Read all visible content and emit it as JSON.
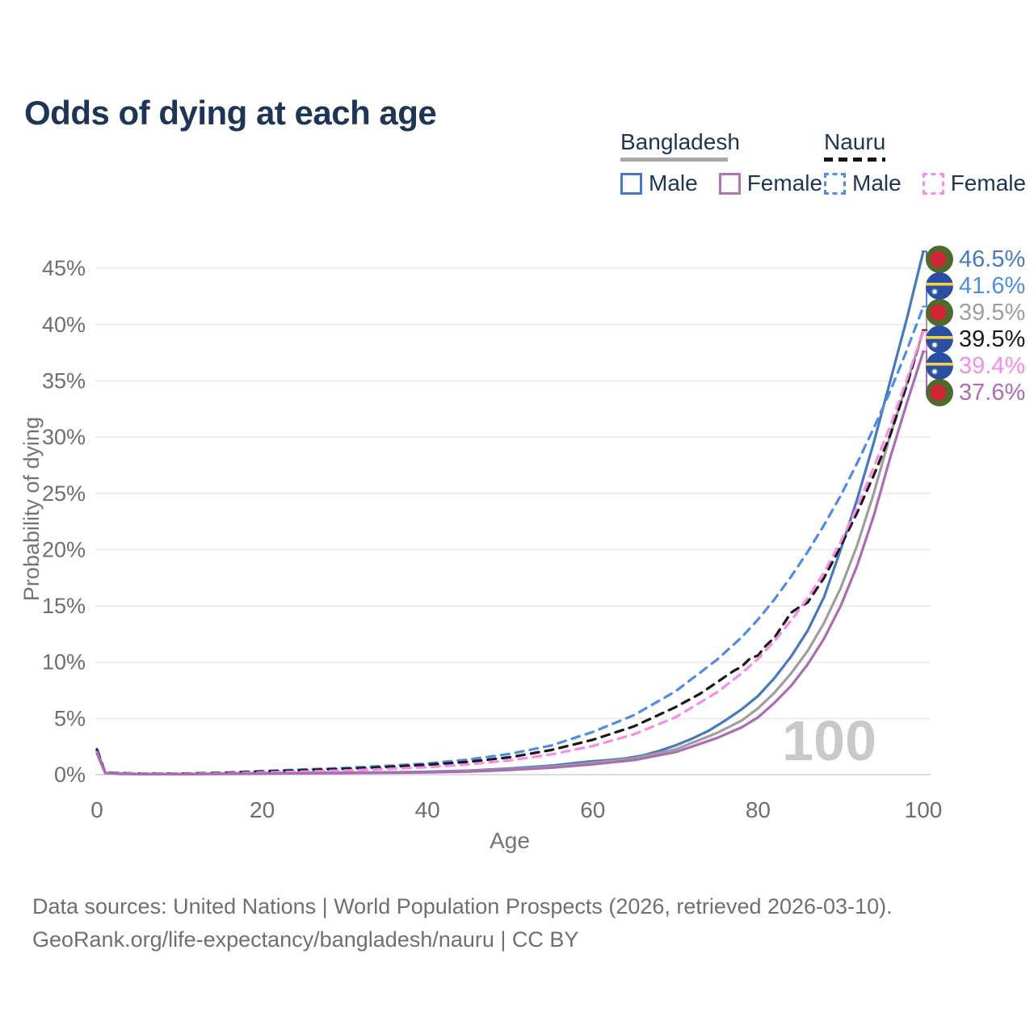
{
  "header": {
    "title": "Odds of dying at each age"
  },
  "legend": {
    "groups": [
      {
        "label": "Bangladesh",
        "line_style": "solid",
        "rule_color": "#a8a8a8",
        "items": [
          {
            "label": "Male",
            "color": "#4679bd",
            "style": "solid"
          },
          {
            "label": "Female",
            "color": "#b273b5",
            "style": "solid"
          }
        ]
      },
      {
        "label": "Nauru",
        "line_style": "dashed",
        "rule_color": "#141414",
        "items": [
          {
            "label": "Male",
            "color": "#4e8ce8",
            "style": "dashed"
          },
          {
            "label": "Female",
            "color": "#f98be6",
            "style": "dashed"
          }
        ]
      }
    ]
  },
  "chart_data": {
    "type": "line",
    "title": "Odds of dying at each age",
    "xlabel": "Age",
    "ylabel": "Probability of dying",
    "xlim": [
      0,
      100
    ],
    "ylim": [
      0,
      47
    ],
    "x_ticks": [
      0,
      20,
      40,
      60,
      80,
      100
    ],
    "y_ticks_pct": [
      0,
      5,
      10,
      15,
      20,
      25,
      30,
      35,
      40,
      45
    ],
    "grid": true,
    "legend_position": "top-right",
    "watermark": "100",
    "series": [
      {
        "id": "bangladesh-male",
        "name": "Bangladesh Male",
        "country": "bangladesh",
        "sex": "male",
        "color": "#4679bd",
        "dash": "solid",
        "end_label": "46.5%",
        "points": [
          [
            0,
            2.2
          ],
          [
            1,
            0.16
          ],
          [
            3,
            0.07
          ],
          [
            5,
            0.06
          ],
          [
            10,
            0.05
          ],
          [
            15,
            0.09
          ],
          [
            18,
            0.13
          ],
          [
            20,
            0.14
          ],
          [
            25,
            0.16
          ],
          [
            30,
            0.18
          ],
          [
            35,
            0.21
          ],
          [
            40,
            0.26
          ],
          [
            45,
            0.36
          ],
          [
            50,
            0.55
          ],
          [
            55,
            0.8
          ],
          [
            58,
            1.05
          ],
          [
            60,
            1.2
          ],
          [
            62,
            1.3
          ],
          [
            64,
            1.45
          ],
          [
            66,
            1.7
          ],
          [
            68,
            2.1
          ],
          [
            70,
            2.6
          ],
          [
            72,
            3.2
          ],
          [
            74,
            3.9
          ],
          [
            76,
            4.8
          ],
          [
            78,
            5.8
          ],
          [
            80,
            7.0
          ],
          [
            82,
            8.6
          ],
          [
            84,
            10.5
          ],
          [
            86,
            12.8
          ],
          [
            88,
            15.8
          ],
          [
            90,
            20.0
          ],
          [
            92,
            24.5
          ],
          [
            94,
            29.5
          ],
          [
            96,
            35.0
          ],
          [
            98,
            40.5
          ],
          [
            100,
            46.5
          ]
        ]
      },
      {
        "id": "nauru-male",
        "name": "Nauru Male",
        "country": "nauru",
        "sex": "male",
        "color": "#4e8ce8",
        "dash": "dashed",
        "end_label": "41.6%",
        "points": [
          [
            0,
            2.3
          ],
          [
            1,
            0.2
          ],
          [
            5,
            0.1
          ],
          [
            10,
            0.1
          ],
          [
            15,
            0.17
          ],
          [
            20,
            0.32
          ],
          [
            25,
            0.46
          ],
          [
            30,
            0.6
          ],
          [
            35,
            0.78
          ],
          [
            40,
            1.0
          ],
          [
            45,
            1.35
          ],
          [
            50,
            1.85
          ],
          [
            55,
            2.6
          ],
          [
            60,
            3.8
          ],
          [
            65,
            5.3
          ],
          [
            70,
            7.4
          ],
          [
            75,
            10.2
          ],
          [
            78,
            12.2
          ],
          [
            80,
            13.8
          ],
          [
            82,
            15.6
          ],
          [
            84,
            17.6
          ],
          [
            86,
            19.8
          ],
          [
            88,
            22.2
          ],
          [
            90,
            24.8
          ],
          [
            92,
            27.7
          ],
          [
            94,
            30.8
          ],
          [
            96,
            34.1
          ],
          [
            98,
            37.7
          ],
          [
            100,
            41.6
          ]
        ]
      },
      {
        "id": "bangladesh-total",
        "name": "Bangladesh",
        "country": "bangladesh",
        "sex": "both",
        "color": "#9e9e9e",
        "dash": "solid",
        "end_label": "39.5%",
        "points": [
          [
            0,
            2.05
          ],
          [
            1,
            0.15
          ],
          [
            5,
            0.055
          ],
          [
            10,
            0.05
          ],
          [
            15,
            0.08
          ],
          [
            20,
            0.12
          ],
          [
            25,
            0.14
          ],
          [
            30,
            0.16
          ],
          [
            35,
            0.19
          ],
          [
            40,
            0.23
          ],
          [
            45,
            0.32
          ],
          [
            50,
            0.48
          ],
          [
            55,
            0.7
          ],
          [
            60,
            1.05
          ],
          [
            65,
            1.45
          ],
          [
            70,
            2.25
          ],
          [
            75,
            3.7
          ],
          [
            78,
            4.8
          ],
          [
            80,
            5.9
          ],
          [
            82,
            7.3
          ],
          [
            84,
            9.0
          ],
          [
            86,
            11.0
          ],
          [
            88,
            13.5
          ],
          [
            90,
            16.6
          ],
          [
            92,
            20.4
          ],
          [
            94,
            25.0
          ],
          [
            96,
            30.2
          ],
          [
            98,
            34.7
          ],
          [
            100,
            39.5
          ]
        ]
      },
      {
        "id": "nauru-total",
        "name": "Nauru",
        "country": "nauru",
        "sex": "both",
        "color": "#1a1a1a",
        "dash": "dashed",
        "end_label": "39.5%",
        "points": [
          [
            0,
            2.2
          ],
          [
            1,
            0.18
          ],
          [
            5,
            0.09
          ],
          [
            10,
            0.09
          ],
          [
            15,
            0.14
          ],
          [
            20,
            0.27
          ],
          [
            25,
            0.4
          ],
          [
            30,
            0.52
          ],
          [
            35,
            0.68
          ],
          [
            40,
            0.88
          ],
          [
            45,
            1.15
          ],
          [
            50,
            1.55
          ],
          [
            55,
            2.2
          ],
          [
            60,
            3.1
          ],
          [
            65,
            4.3
          ],
          [
            70,
            6.0
          ],
          [
            73,
            7.2
          ],
          [
            75,
            8.2
          ],
          [
            77,
            9.2
          ],
          [
            78,
            9.6
          ],
          [
            79,
            10.3
          ],
          [
            80,
            10.6
          ],
          [
            81,
            11.5
          ],
          [
            82,
            12.2
          ],
          [
            83,
            13.3
          ],
          [
            84,
            14.4
          ],
          [
            85,
            14.9
          ],
          [
            86,
            15.3
          ],
          [
            87,
            16.4
          ],
          [
            88,
            17.5
          ],
          [
            89,
            18.9
          ],
          [
            90,
            20.3
          ],
          [
            92,
            23.3
          ],
          [
            94,
            26.6
          ],
          [
            96,
            30.2
          ],
          [
            98,
            34.6
          ],
          [
            100,
            39.5
          ]
        ]
      },
      {
        "id": "nauru-female",
        "name": "Nauru Female",
        "country": "nauru",
        "sex": "female",
        "color": "#f98be6",
        "dash": "dashed",
        "end_label": "39.4%",
        "points": [
          [
            0,
            2.0
          ],
          [
            1,
            0.16
          ],
          [
            5,
            0.08
          ],
          [
            10,
            0.08
          ],
          [
            15,
            0.11
          ],
          [
            20,
            0.2
          ],
          [
            25,
            0.28
          ],
          [
            30,
            0.37
          ],
          [
            35,
            0.5
          ],
          [
            40,
            0.67
          ],
          [
            45,
            0.92
          ],
          [
            50,
            1.28
          ],
          [
            55,
            1.8
          ],
          [
            60,
            2.55
          ],
          [
            65,
            3.6
          ],
          [
            70,
            5.1
          ],
          [
            75,
            7.3
          ],
          [
            78,
            9.0
          ],
          [
            80,
            10.3
          ],
          [
            82,
            11.9
          ],
          [
            84,
            13.7
          ],
          [
            86,
            15.7
          ],
          [
            88,
            18.0
          ],
          [
            90,
            20.7
          ],
          [
            92,
            23.8
          ],
          [
            94,
            27.3
          ],
          [
            96,
            31.0
          ],
          [
            98,
            35.1
          ],
          [
            100,
            39.4
          ]
        ]
      },
      {
        "id": "bangladesh-female",
        "name": "Bangladesh Female",
        "country": "bangladesh",
        "sex": "female",
        "color": "#ac6cb4",
        "dash": "solid",
        "end_label": "37.6%",
        "points": [
          [
            0,
            1.9
          ],
          [
            1,
            0.14
          ],
          [
            5,
            0.05
          ],
          [
            10,
            0.045
          ],
          [
            15,
            0.07
          ],
          [
            20,
            0.1
          ],
          [
            25,
            0.12
          ],
          [
            30,
            0.14
          ],
          [
            35,
            0.17
          ],
          [
            40,
            0.2
          ],
          [
            45,
            0.28
          ],
          [
            50,
            0.42
          ],
          [
            55,
            0.62
          ],
          [
            60,
            0.92
          ],
          [
            65,
            1.3
          ],
          [
            70,
            2.0
          ],
          [
            75,
            3.25
          ],
          [
            78,
            4.2
          ],
          [
            80,
            5.1
          ],
          [
            82,
            6.4
          ],
          [
            84,
            7.9
          ],
          [
            86,
            9.8
          ],
          [
            88,
            12.1
          ],
          [
            90,
            15.0
          ],
          [
            92,
            18.6
          ],
          [
            94,
            23.0
          ],
          [
            96,
            28.2
          ],
          [
            98,
            33.0
          ],
          [
            100,
            37.6
          ]
        ]
      }
    ]
  },
  "flags": {
    "bangladesh": {
      "field": "#4c6b2d",
      "disc": "#d22637"
    },
    "nauru": {
      "field": "#2a4fa2",
      "stripe": "#f2d24b",
      "star": "#ffffff"
    }
  },
  "footer": {
    "line1": "Data sources: United Nations | World Population Prospects (2026, retrieved 2026-03-10).",
    "line2": "GeoRank.org/life-expectancy/bangladesh/nauru | CC BY"
  }
}
